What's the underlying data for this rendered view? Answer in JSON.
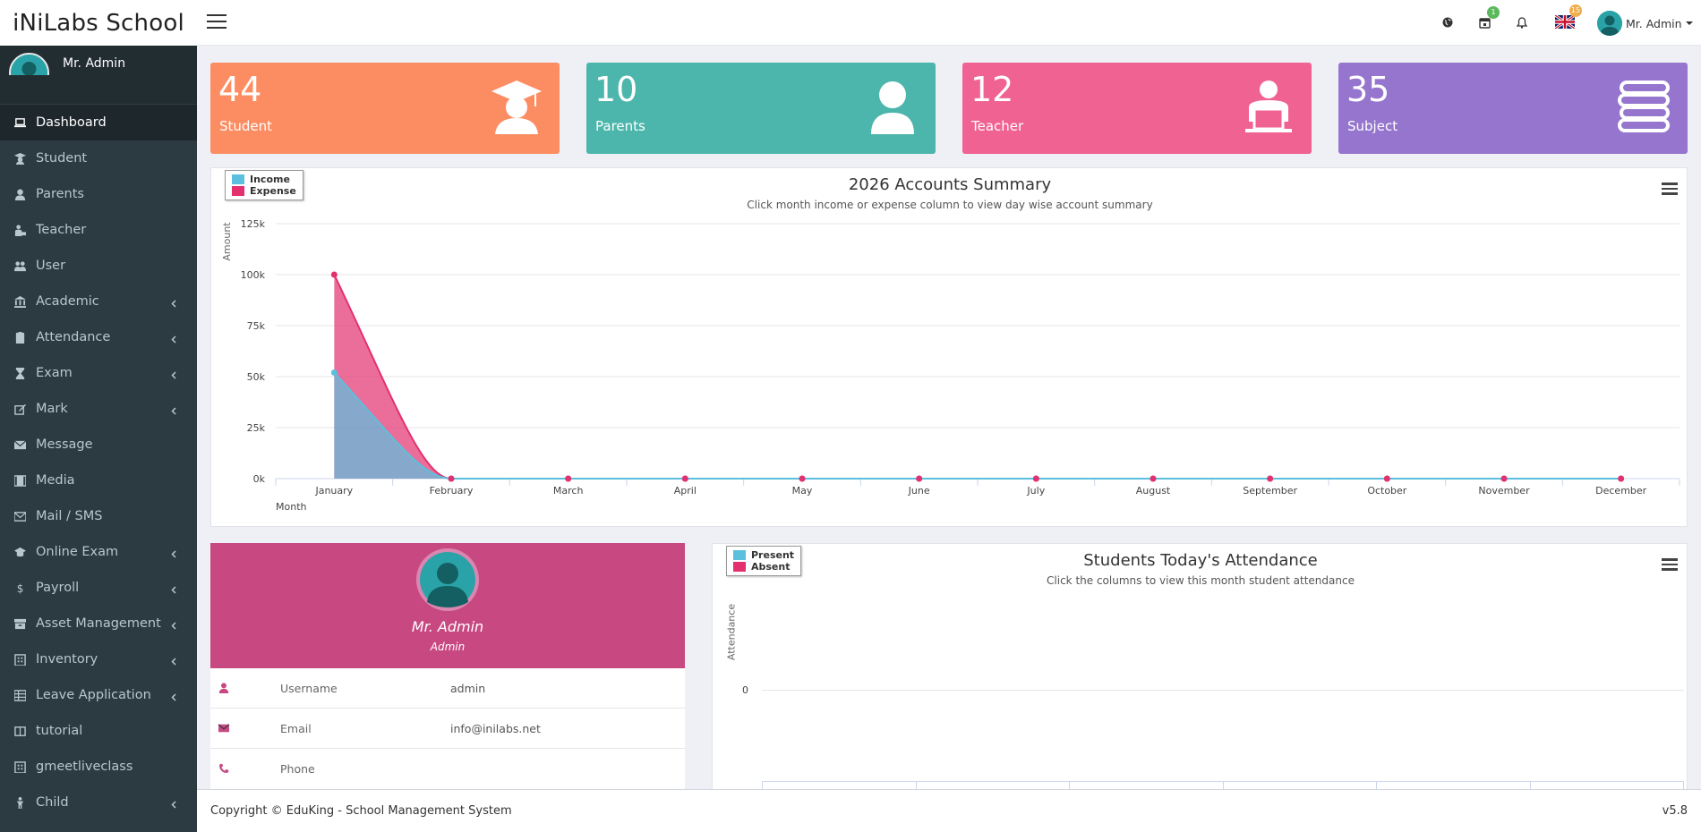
{
  "app": {
    "title": "iNiLabs School"
  },
  "header": {
    "icons": [
      "globe-icon",
      "calendar-icon",
      "bell-icon",
      "uk-flag"
    ],
    "calendar_badge": "1",
    "flag_badge": "15",
    "user_name": "Mr. Admin"
  },
  "sidebar": {
    "profile": {
      "name": "Mr. Admin",
      "role": "Admin"
    },
    "items": [
      {
        "label": "Dashboard",
        "icon": "laptop-icon",
        "active": true,
        "submenu": false
      },
      {
        "label": "Student",
        "icon": "graduate-icon",
        "submenu": false
      },
      {
        "label": "Parents",
        "icon": "user-icon",
        "submenu": false
      },
      {
        "label": "Teacher",
        "icon": "teacher-icon",
        "submenu": false
      },
      {
        "label": "User",
        "icon": "users-icon",
        "submenu": false
      },
      {
        "label": "Academic",
        "icon": "institution-icon",
        "submenu": true
      },
      {
        "label": "Attendance",
        "icon": "clipboard-icon",
        "submenu": true
      },
      {
        "label": "Exam",
        "icon": "hourglass-icon",
        "submenu": true
      },
      {
        "label": "Mark",
        "icon": "edit-icon",
        "submenu": true
      },
      {
        "label": "Message",
        "icon": "envelope-icon",
        "submenu": false
      },
      {
        "label": "Media",
        "icon": "film-icon",
        "submenu": false
      },
      {
        "label": "Mail / SMS",
        "icon": "mail-icon",
        "submenu": false
      },
      {
        "label": "Online Exam",
        "icon": "cap-icon",
        "submenu": true
      },
      {
        "label": "Payroll",
        "icon": "dollar-icon",
        "submenu": true
      },
      {
        "label": "Asset Management",
        "icon": "archive-icon",
        "submenu": true
      },
      {
        "label": "Inventory",
        "icon": "building-icon",
        "submenu": true
      },
      {
        "label": "Leave Application",
        "icon": "table-icon",
        "submenu": true
      },
      {
        "label": "tutorial",
        "icon": "book-icon",
        "submenu": false
      },
      {
        "label": "gmeetliveclass",
        "icon": "building-icon",
        "submenu": false
      },
      {
        "label": "Child",
        "icon": "child-icon",
        "submenu": true
      }
    ]
  },
  "stats": [
    {
      "value": "44",
      "label": "Student",
      "color": "#fc8d62",
      "icon": "graduate-icon"
    },
    {
      "value": "10",
      "label": "Parents",
      "color": "#4db6ac",
      "icon": "user-icon"
    },
    {
      "value": "12",
      "label": "Teacher",
      "color": "#f06292",
      "icon": "teacher-icon"
    },
    {
      "value": "35",
      "label": "Subject",
      "color": "#9575cd",
      "icon": "books-icon"
    }
  ],
  "accounts_chart": {
    "title": "2026 Accounts Summary",
    "subtitle": "Click month income or expense column to view day wise account summary",
    "legend": [
      "Income",
      "Expense"
    ],
    "chart_data": {
      "type": "area",
      "title": "2026 Accounts Summary",
      "xlabel": "Month",
      "ylabel": "Amount",
      "ylim": [
        0,
        125000
      ],
      "y_ticks": [
        "0k",
        "25k",
        "50k",
        "75k",
        "100k",
        "125k"
      ],
      "categories": [
        "January",
        "February",
        "March",
        "April",
        "May",
        "June",
        "July",
        "August",
        "September",
        "October",
        "November",
        "December"
      ],
      "series": [
        {
          "name": "Income",
          "color": "#5bc0de",
          "values": [
            52000,
            0,
            0,
            0,
            0,
            0,
            0,
            0,
            0,
            0,
            0,
            0
          ]
        },
        {
          "name": "Expense",
          "color": "#e3306f",
          "values": [
            100000,
            0,
            0,
            0,
            0,
            0,
            0,
            0,
            0,
            0,
            0,
            0
          ]
        }
      ],
      "grid": true,
      "legend_position": "top-left"
    }
  },
  "attendance_chart": {
    "title": "Students Today's Attendance",
    "subtitle": "Click the columns to view this month student attendance",
    "legend": [
      "Present",
      "Absent"
    ],
    "ylabel": "Attendance",
    "y_tick": "0"
  },
  "profile_card": {
    "name": "Mr. Admin",
    "role": "Admin",
    "rows": [
      {
        "key": "Username",
        "value": "admin",
        "icon": "user-icon"
      },
      {
        "key": "Email",
        "value": "info@inilabs.net",
        "icon": "envelope-icon"
      },
      {
        "key": "Phone",
        "value": "",
        "icon": "phone-icon"
      }
    ]
  },
  "footer": {
    "copyright": "Copyright © EduKing - School Management System",
    "version": "v5.8"
  }
}
